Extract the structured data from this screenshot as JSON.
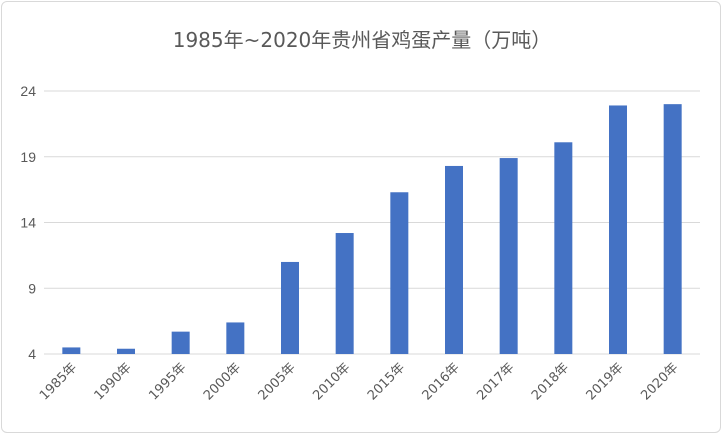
{
  "chart_data": {
    "type": "bar",
    "title": "1985年~2020年贵州省鸡蛋产量（万吨）",
    "categories": [
      "1985年",
      "1990年",
      "1995年",
      "2000年",
      "2005年",
      "2010年",
      "2015年",
      "2016年",
      "2017年",
      "2018年",
      "2019年",
      "2020年"
    ],
    "values": [
      4.5,
      4.4,
      5.7,
      6.4,
      11.0,
      13.2,
      16.3,
      18.3,
      18.9,
      20.1,
      22.9,
      23.0
    ],
    "ylim": [
      4,
      24
    ],
    "yticks": [
      4,
      9,
      14,
      19,
      24
    ],
    "xlabel": "",
    "ylabel": "",
    "grid": true,
    "colors": {
      "bar": "#4472c4",
      "grid": "#d9d9d9",
      "text": "#595959"
    }
  }
}
